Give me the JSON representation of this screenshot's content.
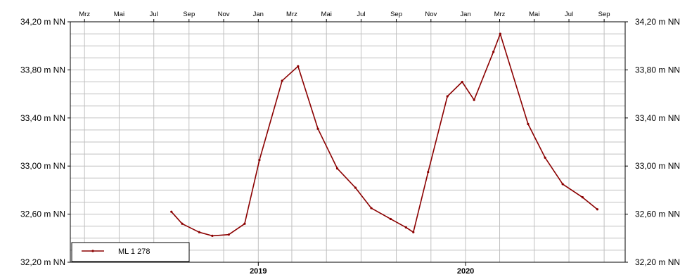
{
  "chart_data": {
    "type": "line",
    "y_tick_labels": [
      "32,20 m NN",
      "32,60 m NN",
      "33,00 m NN",
      "33,40 m NN",
      "33,80 m NN",
      "34,20 m NN"
    ],
    "y_ticks": [
      32.2,
      32.6,
      33.0,
      33.4,
      33.8,
      34.2
    ],
    "ylim": [
      32.2,
      34.2
    ],
    "xlim": [
      "2018-02-04",
      "2020-10-08"
    ],
    "month_ticks": [
      {
        "date": "2018-03-01",
        "label": "Mrz"
      },
      {
        "date": "2018-05-01",
        "label": "Mai"
      },
      {
        "date": "2018-07-01",
        "label": "Jul"
      },
      {
        "date": "2018-09-01",
        "label": "Sep"
      },
      {
        "date": "2018-11-01",
        "label": "Nov"
      },
      {
        "date": "2019-01-01",
        "label": "Jan"
      },
      {
        "date": "2019-03-01",
        "label": "Mrz"
      },
      {
        "date": "2019-05-01",
        "label": "Mai"
      },
      {
        "date": "2019-07-01",
        "label": "Jul"
      },
      {
        "date": "2019-09-01",
        "label": "Sep"
      },
      {
        "date": "2019-11-01",
        "label": "Nov"
      },
      {
        "date": "2020-01-01",
        "label": "Jan"
      },
      {
        "date": "2020-03-01",
        "label": "Mrz"
      },
      {
        "date": "2020-05-01",
        "label": "Mai"
      },
      {
        "date": "2020-07-01",
        "label": "Jul"
      },
      {
        "date": "2020-09-01",
        "label": "Sep"
      }
    ],
    "year_labels": [
      {
        "date": "2019-01-01",
        "label": "2019"
      },
      {
        "date": "2020-01-01",
        "label": "2020"
      }
    ],
    "grid": true,
    "legend_position": "bottom-left",
    "series": [
      {
        "name": "ML 1 278",
        "color": "#8b0000",
        "marker": "dot",
        "points": [
          {
            "x": "2018-08-01",
            "y": 32.62
          },
          {
            "x": "2018-08-20",
            "y": 32.52
          },
          {
            "x": "2018-09-19",
            "y": 32.45
          },
          {
            "x": "2018-10-12",
            "y": 32.42
          },
          {
            "x": "2018-11-10",
            "y": 32.43
          },
          {
            "x": "2018-12-08",
            "y": 32.52
          },
          {
            "x": "2019-01-03",
            "y": 33.05
          },
          {
            "x": "2019-02-12",
            "y": 33.71
          },
          {
            "x": "2019-03-12",
            "y": 33.83
          },
          {
            "x": "2019-04-16",
            "y": 33.31
          },
          {
            "x": "2019-05-20",
            "y": 32.98
          },
          {
            "x": "2019-06-21",
            "y": 32.82
          },
          {
            "x": "2019-07-19",
            "y": 32.65
          },
          {
            "x": "2019-08-22",
            "y": 32.56
          },
          {
            "x": "2019-09-18",
            "y": 32.49
          },
          {
            "x": "2019-10-01",
            "y": 32.45
          },
          {
            "x": "2019-10-27",
            "y": 32.95
          },
          {
            "x": "2019-11-30",
            "y": 33.58
          },
          {
            "x": "2019-12-26",
            "y": 33.7
          },
          {
            "x": "2020-01-16",
            "y": 33.55
          },
          {
            "x": "2020-02-19",
            "y": 33.95
          },
          {
            "x": "2020-03-02",
            "y": 34.1
          },
          {
            "x": "2020-04-20",
            "y": 33.35
          },
          {
            "x": "2020-05-20",
            "y": 33.07
          },
          {
            "x": "2020-06-20",
            "y": 32.85
          },
          {
            "x": "2020-07-25",
            "y": 32.74
          },
          {
            "x": "2020-08-20",
            "y": 32.64
          }
        ]
      }
    ]
  }
}
